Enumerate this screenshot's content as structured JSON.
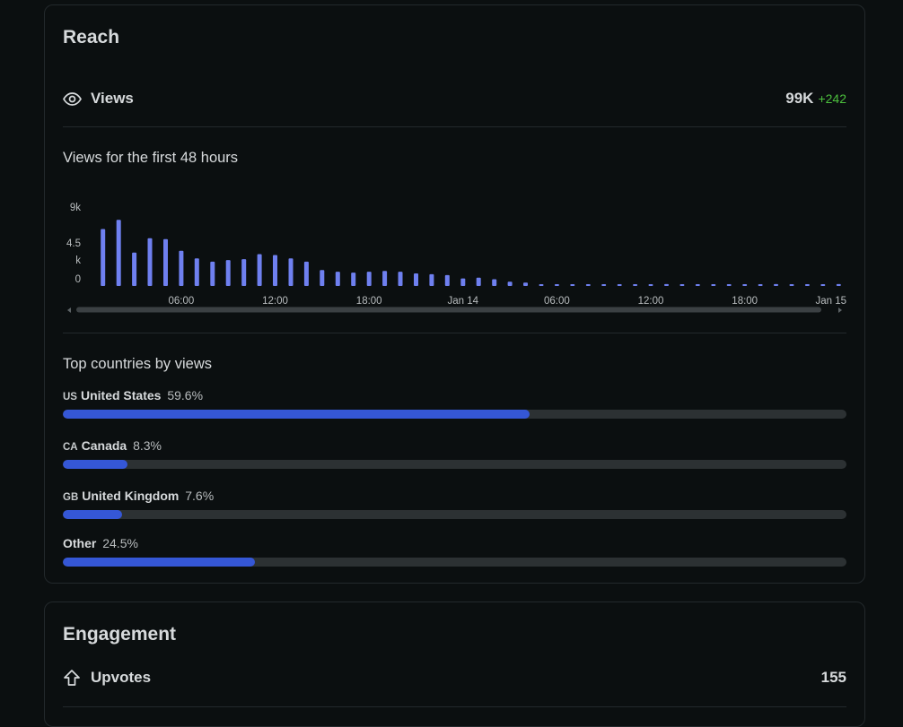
{
  "reach": {
    "title": "Reach",
    "views": {
      "label": "Views",
      "value": "99K",
      "delta": "+242",
      "icon": "eye-icon"
    },
    "chart_title": "Views for the first 48 hours",
    "countries_title": "Top countries by views",
    "countries": [
      {
        "code": "US",
        "name": "United States",
        "pct_label": "59.6%",
        "pct": 59.6
      },
      {
        "code": "CA",
        "name": "Canada",
        "pct_label": "8.3%",
        "pct": 8.3
      },
      {
        "code": "GB",
        "name": "United Kingdom",
        "pct_label": "7.6%",
        "pct": 7.6
      },
      {
        "code": "",
        "name": "Other",
        "pct_label": "24.5%",
        "pct": 24.5
      }
    ]
  },
  "engagement": {
    "title": "Engagement",
    "upvotes": {
      "label": "Upvotes",
      "value": "155",
      "icon": "arrow-up-icon"
    }
  },
  "colors": {
    "bar": "#6f80f0",
    "progress": "#3557d6",
    "delta": "#4cc03d"
  },
  "chart_data": {
    "type": "bar",
    "title": "Views for the first 48 hours",
    "xlabel": "",
    "ylabel": "",
    "ylim": [
      0,
      9000
    ],
    "y_tick_labels": [
      "9k",
      "4.5\nk",
      "0"
    ],
    "x_tick_labels": [
      "06:00",
      "12:00",
      "18:00",
      "Jan 14",
      "06:00",
      "12:00",
      "18:00",
      "Jan 15"
    ],
    "x_tick_positions": [
      6,
      12,
      18,
      24,
      30,
      36,
      42,
      48
    ],
    "values": [
      6800,
      7900,
      4000,
      5700,
      5600,
      4200,
      3300,
      2900,
      3100,
      3200,
      3800,
      3700,
      3300,
      2900,
      1900,
      1700,
      1600,
      1700,
      1800,
      1700,
      1500,
      1400,
      1300,
      900,
      1000,
      800,
      500,
      400,
      200,
      150,
      120,
      100,
      100,
      100,
      120,
      100,
      220,
      100,
      120,
      100,
      100,
      120,
      100,
      220,
      130,
      150,
      200,
      220
    ]
  }
}
